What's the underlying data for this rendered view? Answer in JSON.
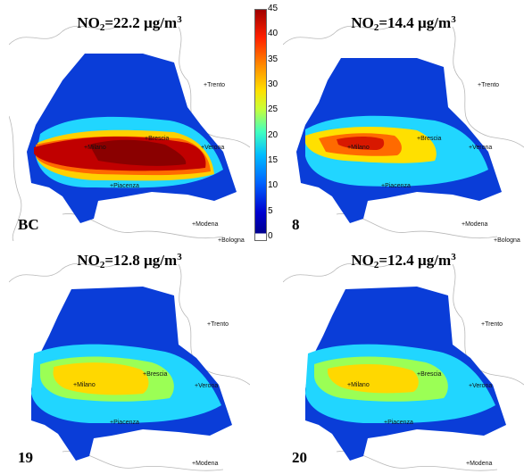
{
  "panels": [
    {
      "id": "BC",
      "label": "BC",
      "title": {
        "pre": "NO",
        "sub": "2",
        "mid": "=22.2 µg/m",
        "sup": "3"
      },
      "mean_no2": 22.2
    },
    {
      "id": "8",
      "label": "8",
      "title": {
        "pre": "NO",
        "sub": "2",
        "mid": "=14.4 µg/m",
        "sup": "3"
      },
      "mean_no2": 14.4
    },
    {
      "id": "19",
      "label": "19",
      "title": {
        "pre": "NO",
        "sub": "2",
        "mid": "=12.8 µg/m",
        "sup": "3"
      },
      "mean_no2": 12.8
    },
    {
      "id": "20",
      "label": "20",
      "title": {
        "pre": "NO",
        "sub": "2",
        "mid": "=12.4 µg/m",
        "sup": "3"
      },
      "mean_no2": 12.4
    }
  ],
  "cities": {
    "trento": "+Trento",
    "verona": "+Verona",
    "brescia": "+Brescia",
    "milano": "+Milano",
    "piacenza": "+Piacenza",
    "modena": "+Modena",
    "bologna": "+Bologna"
  },
  "colorbar": {
    "ticks": [
      "45",
      "40",
      "35",
      "30",
      "25",
      "20",
      "15",
      "10",
      "5",
      "0"
    ],
    "min": 0,
    "max": 45
  },
  "colors": {
    "low": "#00008f",
    "mid": "#40ffc0",
    "high": "#a00000",
    "background": "#ffffff"
  }
}
